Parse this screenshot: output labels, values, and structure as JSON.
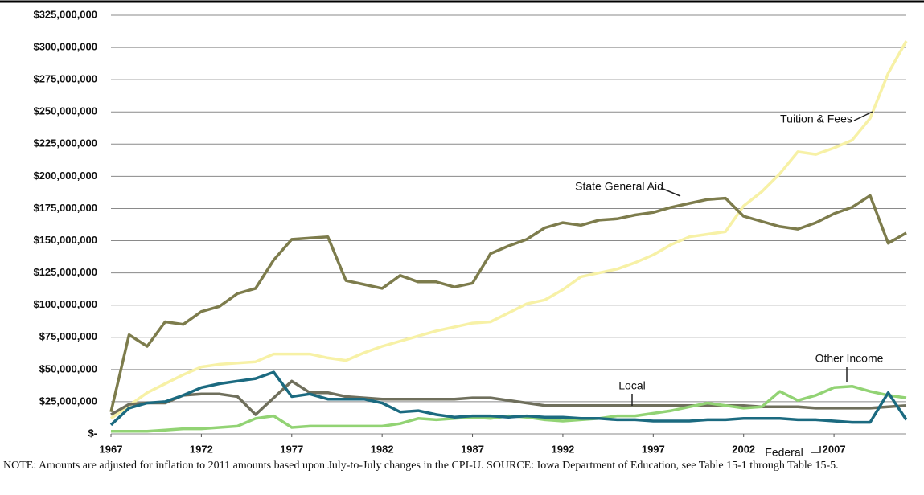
{
  "chart_data": {
    "type": "line",
    "x": [
      1967,
      1968,
      1969,
      1970,
      1971,
      1972,
      1973,
      1974,
      1975,
      1976,
      1977,
      1978,
      1979,
      1980,
      1981,
      1982,
      1983,
      1984,
      1985,
      1986,
      1987,
      1988,
      1989,
      1990,
      1991,
      1992,
      1993,
      1994,
      1995,
      1996,
      1997,
      1998,
      1999,
      2000,
      2001,
      2002,
      2003,
      2004,
      2005,
      2006,
      2007,
      2008,
      2009,
      2010,
      2011
    ],
    "xlim": [
      1967,
      2011
    ],
    "xticks": [
      1967,
      1972,
      1977,
      1982,
      1987,
      1992,
      1997,
      2002,
      2007
    ],
    "ylim": [
      0,
      325000000
    ],
    "yticks": [
      {
        "value": 0,
        "label": "$-"
      },
      {
        "value": 25000000,
        "label": "$25,000,000"
      },
      {
        "value": 50000000,
        "label": "$50,000,000"
      },
      {
        "value": 75000000,
        "label": "$75,000,000"
      },
      {
        "value": 100000000,
        "label": "$100,000,000"
      },
      {
        "value": 125000000,
        "label": "$125,000,000"
      },
      {
        "value": 150000000,
        "label": "$150,000,000"
      },
      {
        "value": 175000000,
        "label": "$175,000,000"
      },
      {
        "value": 200000000,
        "label": "$200,000,000"
      },
      {
        "value": 225000000,
        "label": "$225,000,000"
      },
      {
        "value": 250000000,
        "label": "$250,000,000"
      },
      {
        "value": 275000000,
        "label": "$275,000,000"
      },
      {
        "value": 300000000,
        "label": "$300,000,000"
      },
      {
        "value": 325000000,
        "label": "$325,000,000"
      }
    ],
    "grid": true,
    "series": [
      {
        "name": "Tuition & Fees",
        "color": "#f7f1a6",
        "values": [
          12000000,
          22000000,
          32000000,
          39000000,
          46000000,
          52000000,
          54000000,
          55000000,
          56000000,
          62000000,
          62000000,
          62000000,
          59000000,
          57000000,
          63000000,
          68000000,
          72000000,
          76000000,
          80000000,
          83000000,
          86000000,
          87000000,
          94000000,
          101000000,
          104000000,
          112000000,
          122000000,
          125000000,
          128000000,
          133000000,
          139000000,
          147000000,
          153000000,
          155000000,
          157000000,
          177000000,
          188000000,
          202000000,
          219000000,
          217000000,
          222000000,
          228000000,
          245000000,
          280000000,
          305000000
        ]
      },
      {
        "name": "State General Aid",
        "color": "#7d7c4c",
        "values": [
          17000000,
          77000000,
          68000000,
          87000000,
          85000000,
          95000000,
          99000000,
          109000000,
          113000000,
          135000000,
          151000000,
          152000000,
          153000000,
          119000000,
          116000000,
          113000000,
          123000000,
          118000000,
          118000000,
          114000000,
          117000000,
          140000000,
          146000000,
          151000000,
          160000000,
          164000000,
          162000000,
          166000000,
          167000000,
          170000000,
          172000000,
          176000000,
          179000000,
          182000000,
          183000000,
          169000000,
          165000000,
          161000000,
          159000000,
          164000000,
          171000000,
          176000000,
          185000000,
          148000000,
          156000000
        ]
      },
      {
        "name": "Local",
        "color": "#6f6f5c",
        "values": [
          15000000,
          23000000,
          24000000,
          24000000,
          30000000,
          31000000,
          31000000,
          29000000,
          15000000,
          28000000,
          41000000,
          32000000,
          32000000,
          29000000,
          28000000,
          27000000,
          27000000,
          27000000,
          27000000,
          27000000,
          28000000,
          28000000,
          26000000,
          24000000,
          22000000,
          22000000,
          22000000,
          22000000,
          22000000,
          22000000,
          22000000,
          22000000,
          22000000,
          22000000,
          22000000,
          22000000,
          21000000,
          21000000,
          21000000,
          20000000,
          20000000,
          20000000,
          20000000,
          21000000,
          22000000
        ]
      },
      {
        "name": "Other Income",
        "color": "#92d374",
        "values": [
          2000000,
          2000000,
          2000000,
          3000000,
          4000000,
          4000000,
          5000000,
          6000000,
          12000000,
          14000000,
          5000000,
          6000000,
          6000000,
          6000000,
          6000000,
          6000000,
          8000000,
          12000000,
          11000000,
          12000000,
          13000000,
          12000000,
          14000000,
          13000000,
          11000000,
          10000000,
          11000000,
          12000000,
          14000000,
          14000000,
          16000000,
          18000000,
          21000000,
          24000000,
          22000000,
          20000000,
          21000000,
          33000000,
          26000000,
          30000000,
          36000000,
          37000000,
          33000000,
          30000000,
          28000000
        ]
      },
      {
        "name": "Federal",
        "color": "#1b6a80",
        "values": [
          7000000,
          20000000,
          24000000,
          25000000,
          30000000,
          36000000,
          39000000,
          41000000,
          43000000,
          48000000,
          29000000,
          31000000,
          27000000,
          27000000,
          27000000,
          24000000,
          17000000,
          18000000,
          15000000,
          13000000,
          14000000,
          14000000,
          13000000,
          14000000,
          13000000,
          13000000,
          12000000,
          12000000,
          11000000,
          11000000,
          10000000,
          10000000,
          10000000,
          11000000,
          11000000,
          12000000,
          12000000,
          12000000,
          11000000,
          11000000,
          10000000,
          9000000,
          9000000,
          32000000,
          11000000
        ]
      }
    ],
    "note": "NOTE: Amounts are adjusted for inflation to 2011 amounts based upon July-to-July changes in the CPI-U. SOURCE: Iowa Department of Education, see Table 15-1 through Table 15-5."
  }
}
